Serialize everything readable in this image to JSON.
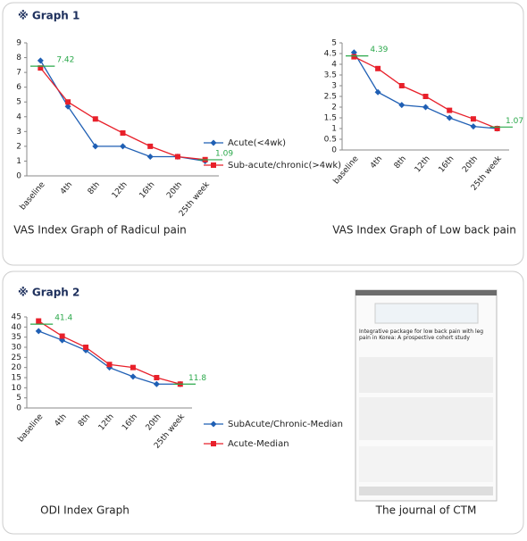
{
  "sections": [
    {
      "heading": "※ Graph 1"
    },
    {
      "heading": "※ Graph 2"
    }
  ],
  "chart_data": [
    {
      "type": "line",
      "title": "VAS Index Graph of Radicul pain",
      "categories": [
        "baseline",
        "4th",
        "8th",
        "12th",
        "16th",
        "20th",
        "25th week"
      ],
      "series": [
        {
          "name": "Acute(<4wk)",
          "color": "#1f5fb4",
          "marker": "diamond",
          "values": [
            7.8,
            4.7,
            2.0,
            2.0,
            1.3,
            1.3,
            1.0
          ]
        },
        {
          "name": "Sub-acute/chronic(>4wk)",
          "color": "#e8202a",
          "marker": "square",
          "values": [
            7.3,
            5.0,
            3.85,
            2.9,
            2.0,
            1.3,
            1.1
          ]
        }
      ],
      "annotations": [
        7.42,
        1.09
      ],
      "annotation_color": "#2aa84a",
      "ylim": [
        0,
        9
      ],
      "yticks": [
        0,
        1,
        2,
        3,
        4,
        5,
        6,
        7,
        8,
        9
      ],
      "grid": false,
      "legend": "right"
    },
    {
      "type": "line",
      "title": "VAS Index Graph of Low back pain",
      "categories": [
        "baseline",
        "4th",
        "8th",
        "12th",
        "16th",
        "20th",
        "25th week"
      ],
      "series": [
        {
          "color": "#1f5fb4",
          "marker": "diamond",
          "values": [
            4.55,
            2.7,
            2.1,
            2.0,
            1.5,
            1.1,
            1.0
          ]
        },
        {
          "color": "#e8202a",
          "marker": "square",
          "values": [
            4.35,
            3.8,
            3.0,
            2.5,
            1.85,
            1.45,
            1.0
          ]
        }
      ],
      "annotations": [
        4.39,
        1.07
      ],
      "annotation_color": "#2aa84a",
      "ylim": [
        0,
        5
      ],
      "yticks": [
        0,
        0.5,
        1,
        1.5,
        2,
        2.5,
        3,
        3.5,
        4,
        4.5,
        5
      ],
      "grid": false
    },
    {
      "type": "line",
      "title": "ODI Index Graph",
      "categories": [
        "baseline",
        "4th",
        "8th",
        "12th",
        "16th",
        "20th",
        "25th week"
      ],
      "series": [
        {
          "name": "SubAcute/Chronic-Median",
          "color": "#1f5fb4",
          "marker": "diamond",
          "values": [
            38,
            33.5,
            28.5,
            20,
            15.5,
            11.8,
            11.8
          ]
        },
        {
          "name": "Acute-Median",
          "color": "#e8202a",
          "marker": "square",
          "values": [
            43,
            35.5,
            30,
            21.5,
            20,
            15,
            11.8
          ]
        }
      ],
      "annotations": [
        41.4,
        11.8
      ],
      "annotation_color": "#2aa84a",
      "ylim": [
        0,
        45
      ],
      "yticks": [
        0,
        5,
        10,
        15,
        20,
        25,
        30,
        35,
        40,
        45
      ],
      "grid": false,
      "legend": "right"
    }
  ],
  "journal": {
    "title": "Integrative package for low back pain with leg pain in Korea: A prospective cohort study",
    "caption": "The journal of CTM"
  }
}
